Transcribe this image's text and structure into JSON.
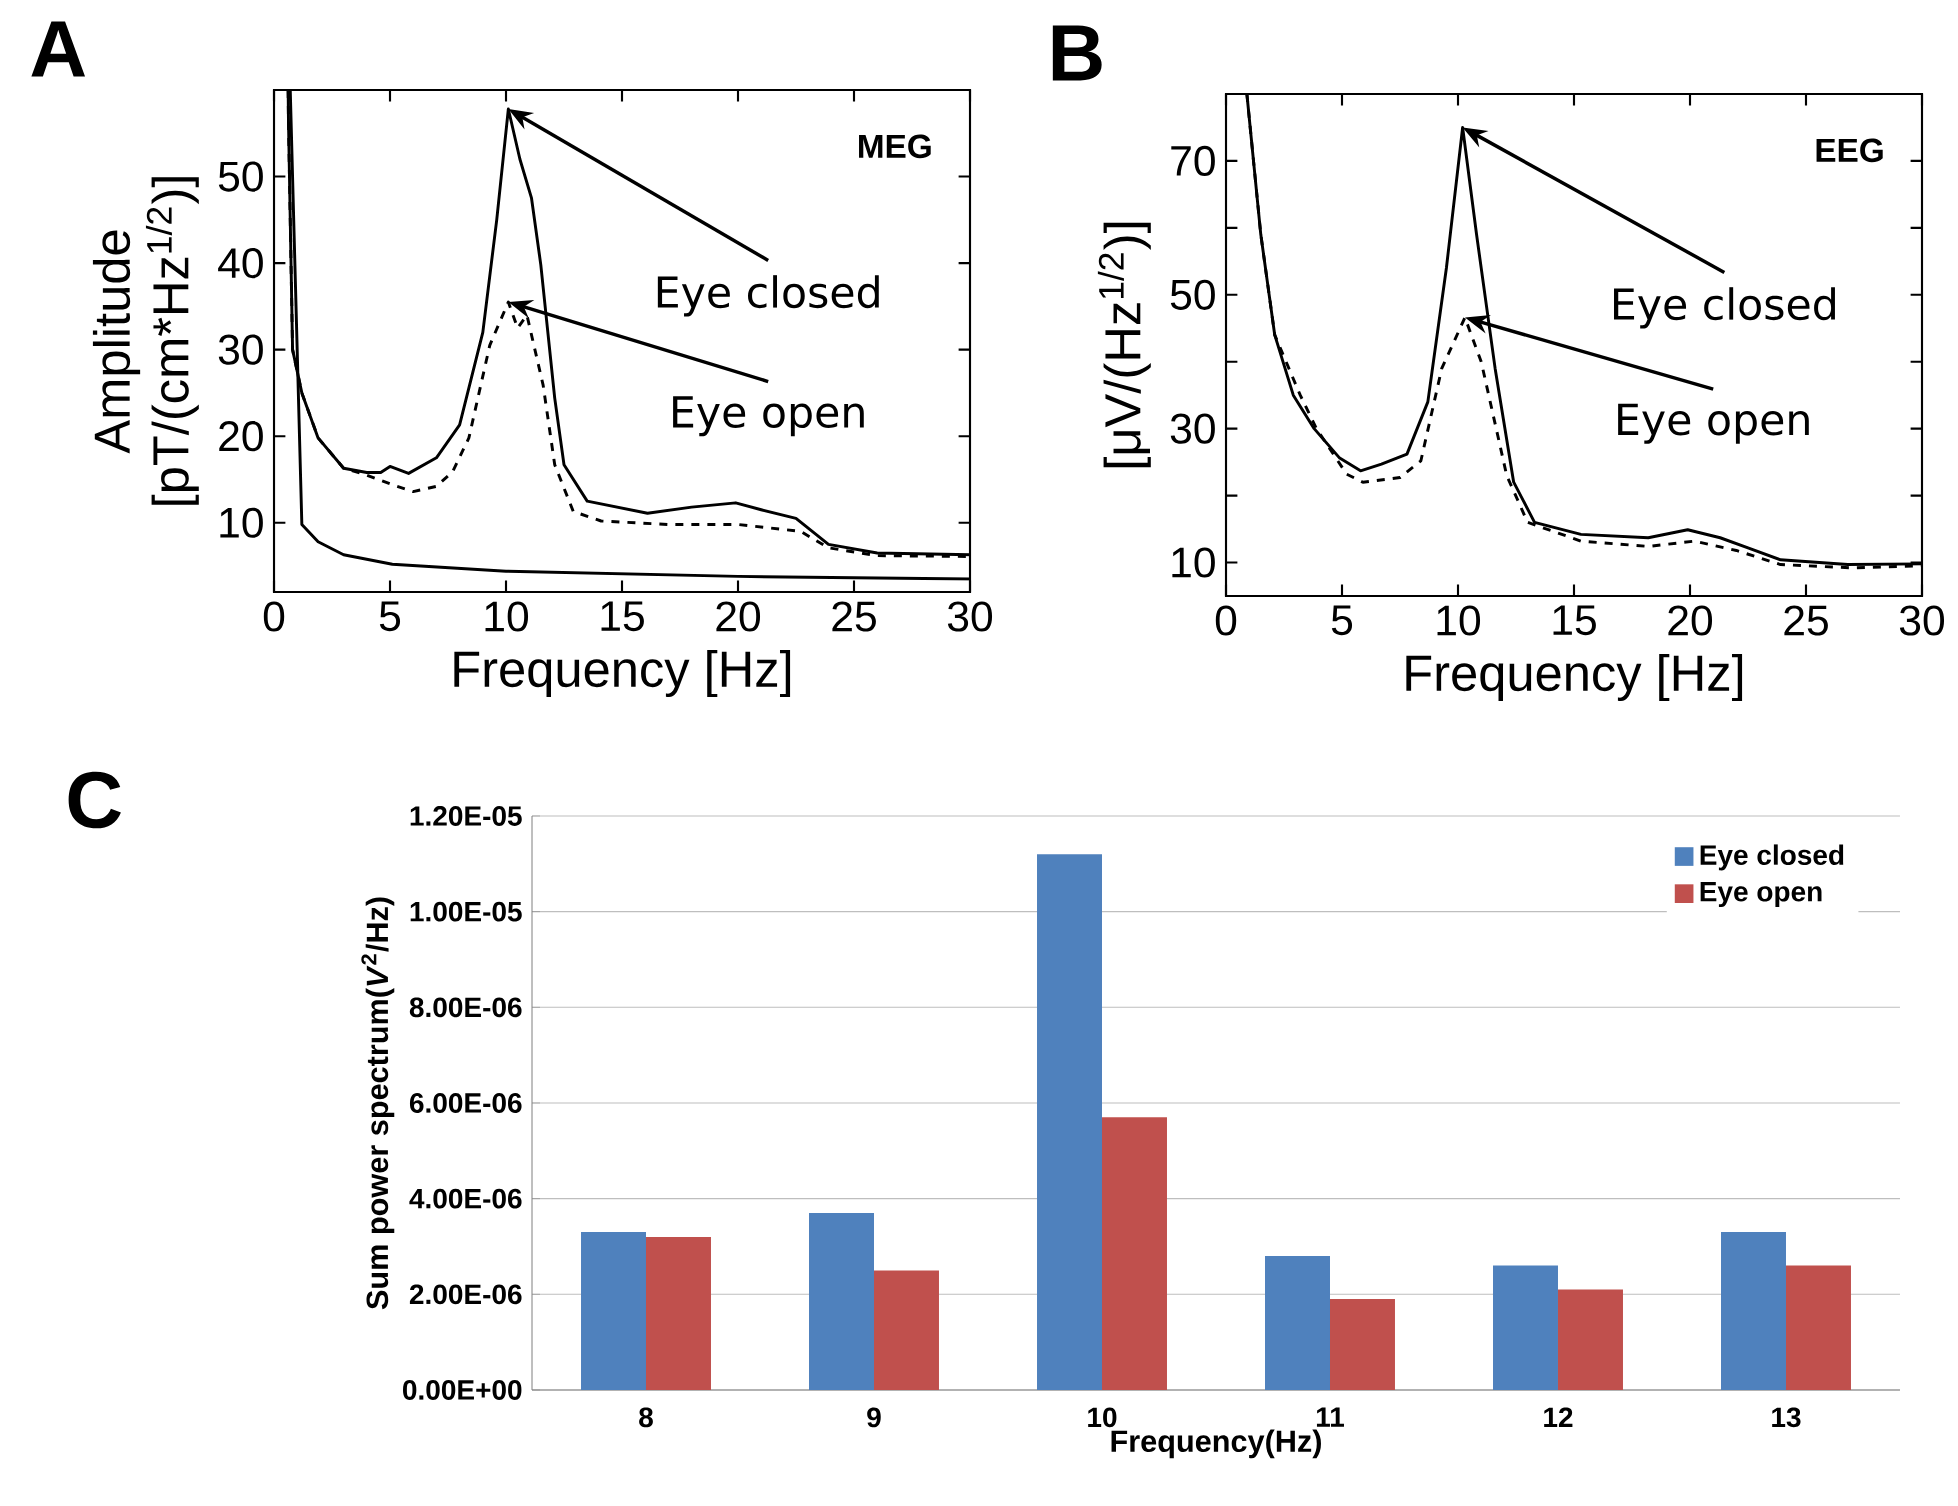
{
  "chart_data": [
    {
      "type": "line",
      "title": "A",
      "xlabel": "Frequency [Hz]",
      "ylabel": "Amplitude [pT/(cm*Hz$^{1/2}$)]",
      "xlim": [
        0,
        30
      ],
      "ylim": [
        2,
        60
      ],
      "xticks": [
        0,
        5,
        10,
        15,
        20,
        25,
        30
      ],
      "yticks": [
        10,
        20,
        30,
        40,
        50
      ],
      "series": [
        {
          "color": "#000000",
          "line_style": "solid",
          "x": [
            0.6,
            0.8,
            1.2,
            1.9,
            3.0,
            4.0,
            4.6,
            5.0,
            5.8,
            7.0,
            8.0,
            9.0,
            9.6,
            10.1,
            10.6,
            11.1,
            11.5,
            12.1,
            12.5,
            13.5,
            16.1,
            18,
            19.9,
            21,
            22.5,
            23.9,
            26,
            30
          ],
          "values": [
            60,
            30,
            25,
            19.8,
            16.3,
            15.8,
            15.8,
            16.5,
            15.7,
            17.5,
            21.3,
            32,
            45,
            57.8,
            52,
            47.5,
            39.8,
            24.4,
            16.7,
            12.5,
            11.1,
            11.8,
            12.3,
            11.5,
            10.5,
            7.5,
            6.5,
            6.3
          ]
        },
        {
          "color": "#000000",
          "line_style": "dashed",
          "x": [
            0.6,
            0.8,
            1.2,
            1.9,
            3.0,
            4.0,
            5.1,
            6.0,
            7.0,
            7.7,
            8.4,
            9.3,
            10.1,
            10.5,
            10.9,
            11.6,
            12.1,
            12.9,
            14.1,
            17,
            20,
            22.7,
            23.9,
            26,
            30
          ],
          "values": [
            60,
            30,
            25,
            19.8,
            16.3,
            15.5,
            14.4,
            13.6,
            14.2,
            15.9,
            19.8,
            30.5,
            35.5,
            32.5,
            34,
            25.9,
            16.7,
            11.3,
            10.2,
            9.8,
            9.8,
            9,
            7.1,
            6.2,
            6.1
          ]
        },
        {
          "color": "#000000",
          "line_style": "solid",
          "x": [
            0.7,
            1.2,
            1.9,
            3,
            5.1,
            10,
            20,
            30
          ],
          "values": [
            60,
            9.8,
            7.8,
            6.3,
            5.2,
            4.4,
            3.8,
            3.5
          ]
        }
      ],
      "annotations": [
        "MEG",
        {
          "text": "Eye closed",
          "x": 10.1,
          "y": 57.8
        },
        {
          "text": "Eye open",
          "x": 10.1,
          "y": 35.5
        }
      ]
    },
    {
      "type": "line",
      "title": "B",
      "xlabel": "Frequency [Hz]",
      "ylabel": "[μV/(Hz$^{1/2}$)]",
      "xlim": [
        0,
        30
      ],
      "ylim": [
        5,
        80
      ],
      "xticks": [
        0,
        5,
        10,
        15,
        20,
        25,
        30
      ],
      "yticks": [
        10,
        {
          "value": 20,
          "label": null
        },
        30,
        {
          "value": 40,
          "label": null
        },
        50,
        {
          "value": 60,
          "label": null
        },
        70
      ],
      "series": [
        {
          "color": "#000000",
          "line_style": "solid",
          "x": [
            0.9,
            1.5,
            2.1,
            2.9,
            3.8,
            4.9,
            5.8,
            6.7,
            7.8,
            8.7,
            9.5,
            10.2,
            10.8,
            11.6,
            12.4,
            13.3,
            15.3,
            18.2,
            19.9,
            21.3,
            22.5,
            23.9,
            26.8,
            30
          ],
          "values": [
            80,
            59,
            44,
            35,
            30,
            25.6,
            23.7,
            24.7,
            26.2,
            34,
            54,
            75,
            59,
            39,
            22,
            16,
            14.2,
            13.7,
            14.9,
            13.7,
            12.2,
            10.4,
            9.7,
            9.8
          ]
        },
        {
          "color": "#000000",
          "line_style": "dashed",
          "x": [
            0.9,
            1.5,
            2.1,
            3.2,
            3.9,
            5.2,
            5.9,
            7.5,
            8.4,
            9.3,
            10.3,
            11.0,
            12.1,
            13.0,
            15.3,
            18.2,
            20.2,
            22,
            23.9,
            27,
            30
          ],
          "values": [
            80,
            59,
            44,
            35,
            30,
            23.2,
            22,
            22.7,
            25.2,
            39,
            46.6,
            40,
            23,
            16,
            13.2,
            12.4,
            13.2,
            11.8,
            9.7,
            9.2,
            9.5
          ]
        }
      ],
      "annotations": [
        "EEG",
        {
          "text": "Eye closed",
          "x": 10.2,
          "y": 75
        },
        {
          "text": "Eye open",
          "x": 10.3,
          "y": 46.6
        }
      ]
    },
    {
      "type": "bar",
      "title": "C",
      "xlabel": "Frequency(Hz)",
      "ylabel": "Sum power spectrum(*V*$^{2}$/Hz)",
      "categories": [
        "8",
        "9",
        "10",
        "11",
        "12",
        "13"
      ],
      "ylim": [
        0,
        1.2e-05
      ],
      "yticks": [
        {
          "value": 0,
          "label": "0.00E+00"
        },
        {
          "value": 2e-06,
          "label": "2.00E-06"
        },
        {
          "value": 4e-06,
          "label": "4.00E-06"
        },
        {
          "value": 6e-06,
          "label": "6.00E-06"
        },
        {
          "value": 8e-06,
          "label": "8.00E-06"
        },
        {
          "value": 1e-05,
          "label": "1.00E-05"
        },
        {
          "value": 1.2e-05,
          "label": "1.20E-05"
        }
      ],
      "grid": "y",
      "legend": "top right",
      "series": [
        {
          "name": "Eye closed",
          "color": "#4f81bd",
          "values": [
            3.3e-06,
            3.7e-06,
            1.12e-05,
            2.8e-06,
            2.6e-06,
            3.3e-06
          ]
        },
        {
          "name": "Eye open",
          "color": "#c0504d",
          "values": [
            3.2e-06,
            2.5e-06,
            5.7e-06,
            1.9e-06,
            2.1e-06,
            2.6e-06
          ]
        }
      ]
    }
  ]
}
